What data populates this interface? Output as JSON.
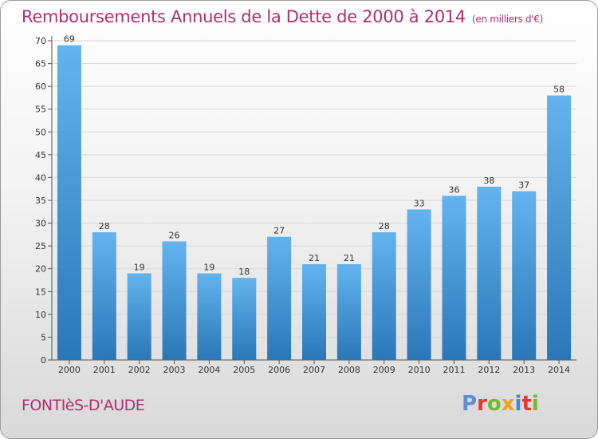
{
  "title": "Remboursements Annuels de la Dette de 2000 à 2014",
  "unit": "(en milliers d'€)",
  "commune": "FONTIèS-D'AUDE",
  "logo": "Proxiti",
  "colors": {
    "title": "#b0306e",
    "bar_light": "#63b4ee",
    "bar_dark": "#2a77b8",
    "logo_letters": [
      "#5b8fd6",
      "#e8392f",
      "#79b92c",
      "#f2a21a",
      "#3d86d8",
      "#e8392f",
      "#79b92c"
    ]
  },
  "chart_data": {
    "type": "bar",
    "title": "Remboursements Annuels de la Dette de 2000 à 2014",
    "subtitle": "(en milliers d'€)",
    "xlabel": "",
    "ylabel": "",
    "categories": [
      "2000",
      "2001",
      "2002",
      "2003",
      "2004",
      "2005",
      "2006",
      "2007",
      "2008",
      "2009",
      "2010",
      "2011",
      "2012",
      "2013",
      "2014"
    ],
    "values": [
      69,
      28,
      19,
      26,
      19,
      18,
      27,
      21,
      21,
      28,
      33,
      36,
      38,
      37,
      58
    ],
    "ylim": [
      0,
      70
    ],
    "yticks": [
      0,
      5,
      10,
      15,
      20,
      25,
      30,
      35,
      40,
      45,
      50,
      55,
      60,
      65,
      70
    ],
    "grid": true,
    "data_labels": true
  }
}
